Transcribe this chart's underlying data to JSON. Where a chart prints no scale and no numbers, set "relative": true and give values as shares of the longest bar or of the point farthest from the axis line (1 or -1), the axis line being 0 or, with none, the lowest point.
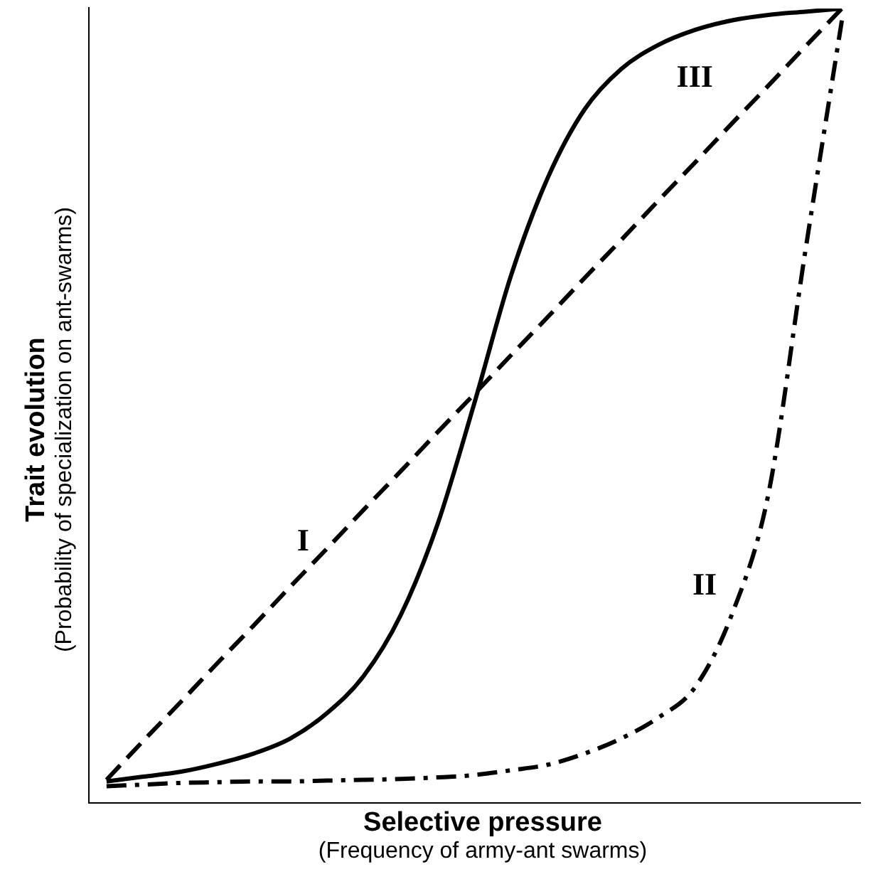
{
  "chart_data": {
    "type": "line",
    "relative": true,
    "xlabel": "Selective pressure\n(Frequency of army-ant swarms)",
    "ylabel": "Trait evolution\n(Probability of specialization on ant-swarms)",
    "categories": [
      null,
      null,
      null,
      null,
      null,
      null,
      null,
      null,
      null,
      null,
      null,
      null,
      null,
      null,
      null,
      null,
      null,
      null,
      null,
      null,
      null
    ],
    "legend": false,
    "grid": false,
    "marker": "none",
    "series": [
      {
        "name": "I",
        "color": "#000000",
        "line_style": "dashed",
        "values": [
          0.03,
          0.079,
          0.127,
          0.176,
          0.224,
          0.273,
          0.321,
          0.37,
          0.418,
          0.467,
          0.515,
          0.564,
          0.612,
          0.661,
          0.709,
          0.758,
          0.806,
          0.855,
          0.903,
          0.952,
          1
        ]
      },
      {
        "name": "II",
        "color": "#000000",
        "line_style": "dashdot",
        "values": [
          0.022,
          0.024,
          0.026,
          0.027,
          0.028,
          0.028,
          0.029,
          0.03,
          0.031,
          0.033,
          0.036,
          0.042,
          0.049,
          0.063,
          0.082,
          0.108,
          0.146,
          0.237,
          0.389,
          0.693,
          0.985
        ]
      },
      {
        "name": "III",
        "color": "#000000",
        "line_style": "solid",
        "values": [
          0.028,
          0.034,
          0.04,
          0.05,
          0.063,
          0.082,
          0.114,
          0.161,
          0.237,
          0.351,
          0.503,
          0.664,
          0.787,
          0.873,
          0.924,
          0.954,
          0.973,
          0.985,
          0.992,
          0.996,
          1
        ]
      }
    ]
  }
}
